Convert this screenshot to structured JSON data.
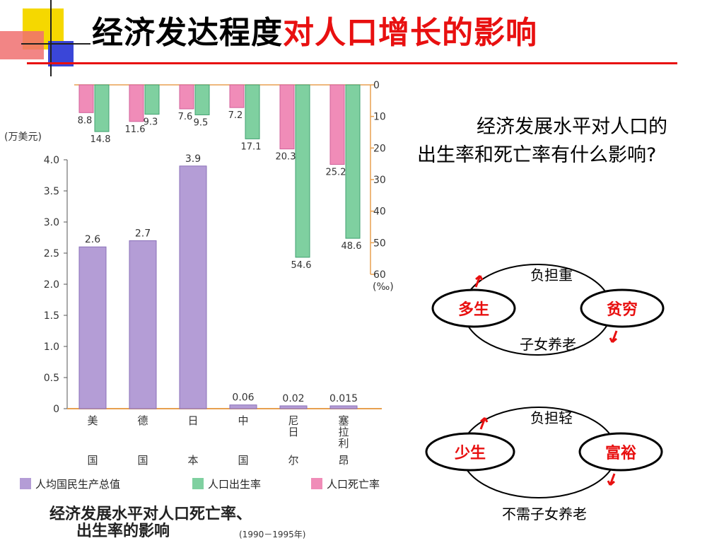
{
  "slide": {
    "title_black": "经济发达程度",
    "title_red": "对人口增长的影响",
    "question": "经济发展水平对人口的出生率和死亡率有什么影响?"
  },
  "colors": {
    "accent_red": "#e81010",
    "gdp_bar": "#b49dd6",
    "birth_bar": "#7fd0a0",
    "death_bar": "#f08cb8"
  },
  "cycles": [
    {
      "left": "多生",
      "right": "贫穷",
      "top": "负担重",
      "bottom": "子女养老"
    },
    {
      "left": "少生",
      "right": "富裕",
      "top": "负担轻",
      "bottom": "不需子女养老"
    }
  ],
  "chart_data": {
    "type": "bar",
    "caption_line1": "经济发展水平对人口死亡率、",
    "caption_line2": "出生率的影响",
    "caption_years": "(1990－1995年)",
    "left_axis_label": "(万美元)",
    "right_axis_label": "(‰)",
    "categories": [
      {
        "top": "美",
        "bottom": "国"
      },
      {
        "top": "德",
        "bottom": "国"
      },
      {
        "top": "日",
        "bottom": "本"
      },
      {
        "top": "中",
        "bottom": "国"
      },
      {
        "top": "尼日",
        "bottom": "尔"
      },
      {
        "top": "塞拉利",
        "bottom": "昂"
      }
    ],
    "y_left_ticks": [
      "0",
      "0.5",
      "1.0",
      "1.5",
      "2.0",
      "2.5",
      "3.0",
      "3.5",
      "4.0"
    ],
    "y_right_ticks": [
      "0",
      "10",
      "20",
      "30",
      "40",
      "50",
      "60"
    ],
    "ylim_left": [
      0,
      4.0
    ],
    "ylim_right": [
      0,
      60
    ],
    "series": [
      {
        "name": "人均国民生产总值",
        "axis": "left",
        "values": [
          2.6,
          2.7,
          3.9,
          0.06,
          0.02,
          0.015
        ],
        "labels": [
          "2.6",
          "2.7",
          "3.9",
          "0.06",
          "0.02",
          "0.015"
        ]
      },
      {
        "name": "人口出生率",
        "axis": "right",
        "values": [
          14.8,
          9.3,
          9.5,
          17.1,
          54.6,
          48.6
        ],
        "labels": [
          "14.8",
          "9.3",
          "9.5",
          "17.1",
          "54.6",
          "48.6"
        ]
      },
      {
        "name": "人口死亡率",
        "axis": "right",
        "values": [
          8.8,
          11.6,
          7.6,
          7.2,
          20.3,
          25.2
        ],
        "labels": [
          "8.8",
          "11.6",
          "7.6",
          "7.2",
          "20.3",
          "25.2"
        ]
      }
    ]
  }
}
